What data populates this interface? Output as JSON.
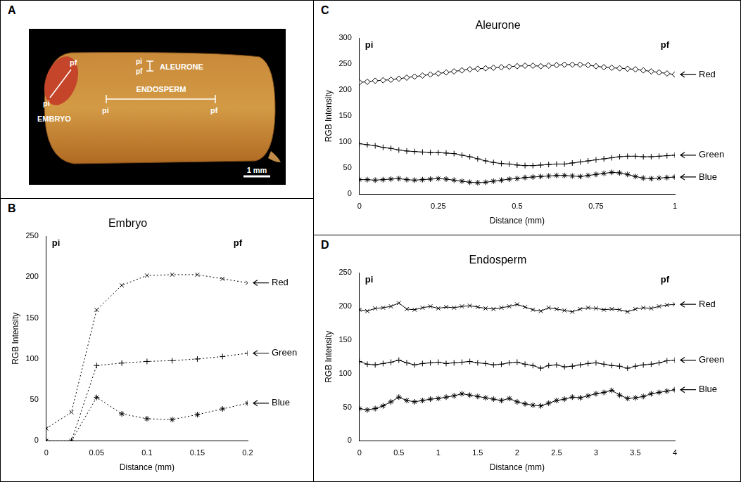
{
  "panel_a": {
    "letter": "A",
    "labels": {
      "embryo": "EMBRYO",
      "endosperm": "ENDOSPERM",
      "aleurone": "ALEURONE",
      "start": "pi",
      "end": "pf",
      "scale": "1 mm"
    }
  },
  "chart_data": [
    {
      "panel": "B",
      "type": "line",
      "title": "Embryo",
      "x_label": "Distance (mm)",
      "y_label": "RGB Intensity",
      "x": [
        0,
        0.025,
        0.05,
        0.075,
        0.1,
        0.125,
        0.15,
        0.175,
        0.2
      ],
      "series": [
        {
          "name": "Red",
          "color": "#000000",
          "marker": "x",
          "line_style": "dotted",
          "values": [
            15,
            35,
            160,
            190,
            202,
            203,
            203,
            198,
            193
          ]
        },
        {
          "name": "Green",
          "color": "#000000",
          "marker": "+",
          "line_style": "dotted",
          "values": [
            0,
            0,
            92,
            95,
            97,
            98,
            100,
            103,
            107
          ]
        },
        {
          "name": "Blue",
          "color": "#000000",
          "marker": "*",
          "line_style": "dotted",
          "values": [
            0,
            0,
            53,
            33,
            27,
            26,
            32,
            39,
            46
          ]
        }
      ],
      "annotations": [
        {
          "text": "pi",
          "x": 0
        },
        {
          "text": "pf",
          "x": 0.2
        }
      ],
      "xlim": [
        0,
        0.2
      ],
      "xticks": [
        0,
        0.05,
        0.1,
        0.15,
        0.2
      ],
      "ylim": [
        0,
        250
      ],
      "yticks": [
        0,
        50,
        100,
        150,
        200,
        250
      ],
      "grid": false
    },
    {
      "panel": "C",
      "type": "line",
      "title": "Aleurone",
      "x_label": "Distance (mm)",
      "y_label": "RGB Intensity",
      "x": [
        0,
        0.025,
        0.05,
        0.075,
        0.1,
        0.125,
        0.15,
        0.175,
        0.2,
        0.225,
        0.25,
        0.275,
        0.3,
        0.325,
        0.35,
        0.375,
        0.4,
        0.425,
        0.45,
        0.475,
        0.5,
        0.525,
        0.55,
        0.575,
        0.6,
        0.625,
        0.65,
        0.675,
        0.7,
        0.725,
        0.75,
        0.775,
        0.8,
        0.825,
        0.85,
        0.875,
        0.9,
        0.925,
        0.95,
        0.975,
        1
      ],
      "series": [
        {
          "name": "Red",
          "color": "#000000",
          "marker": "diamond",
          "line_style": "solid",
          "values": [
            215,
            216,
            218,
            219,
            220,
            222,
            224,
            226,
            228,
            230,
            232,
            234,
            236,
            238,
            240,
            241,
            242,
            243,
            244,
            245,
            246,
            247,
            247,
            246,
            247,
            248,
            249,
            249,
            249,
            248,
            246,
            244,
            243,
            242,
            241,
            240,
            238,
            236,
            234,
            232,
            230
          ]
        },
        {
          "name": "Green",
          "color": "#000000",
          "marker": "+",
          "line_style": "solid",
          "values": [
            97,
            95,
            93,
            90,
            88,
            85,
            83,
            82,
            81,
            80,
            80,
            79,
            78,
            75,
            72,
            68,
            64,
            61,
            59,
            58,
            56,
            55,
            55,
            56,
            57,
            58,
            58,
            60,
            62,
            64,
            66,
            68,
            70,
            72,
            73,
            73,
            72,
            72,
            73,
            74,
            75
          ]
        },
        {
          "name": "Blue",
          "color": "#000000",
          "marker": "*",
          "line_style": "solid",
          "values": [
            28,
            28,
            27,
            28,
            29,
            30,
            28,
            27,
            28,
            29,
            30,
            29,
            27,
            25,
            23,
            22,
            23,
            25,
            27,
            29,
            30,
            32,
            33,
            34,
            35,
            36,
            36,
            35,
            34,
            36,
            38,
            40,
            42,
            41,
            38,
            34,
            31,
            30,
            31,
            32,
            33
          ]
        }
      ],
      "annotations": [
        {
          "text": "pi",
          "x": 0
        },
        {
          "text": "pf",
          "x": 1
        }
      ],
      "xlim": [
        0,
        1
      ],
      "xticks": [
        0,
        0.25,
        0.5,
        0.75,
        1
      ],
      "ylim": [
        0,
        300
      ],
      "yticks": [
        0,
        50,
        100,
        150,
        200,
        250,
        300
      ],
      "grid": false
    },
    {
      "panel": "D",
      "type": "line",
      "title": "Endosperm",
      "x_label": "Distance (mm)",
      "y_label": "RGB Intensity",
      "x": [
        0,
        0.1,
        0.2,
        0.3,
        0.4,
        0.5,
        0.6,
        0.7,
        0.8,
        0.9,
        1,
        1.1,
        1.2,
        1.3,
        1.4,
        1.5,
        1.6,
        1.7,
        1.8,
        1.9,
        2,
        2.1,
        2.2,
        2.3,
        2.4,
        2.5,
        2.6,
        2.7,
        2.8,
        2.9,
        3,
        3.1,
        3.2,
        3.3,
        3.4,
        3.5,
        3.6,
        3.7,
        3.8,
        3.9,
        4
      ],
      "series": [
        {
          "name": "Red",
          "color": "#000000",
          "marker": "x",
          "line_style": "solid",
          "values": [
            195,
            193,
            197,
            198,
            200,
            205,
            196,
            195,
            198,
            200,
            197,
            199,
            198,
            200,
            201,
            199,
            197,
            196,
            198,
            200,
            203,
            199,
            195,
            193,
            198,
            196,
            194,
            192,
            196,
            198,
            197,
            195,
            196,
            195,
            192,
            196,
            198,
            197,
            200,
            202,
            203
          ]
        },
        {
          "name": "Green",
          "color": "#000000",
          "marker": "+",
          "line_style": "solid",
          "values": [
            118,
            114,
            113,
            115,
            117,
            120,
            116,
            113,
            115,
            116,
            117,
            115,
            116,
            117,
            118,
            116,
            115,
            113,
            114,
            116,
            117,
            114,
            112,
            108,
            112,
            113,
            110,
            111,
            113,
            115,
            116,
            114,
            112,
            111,
            108,
            111,
            113,
            114,
            116,
            119,
            120
          ]
        },
        {
          "name": "Blue",
          "color": "#000000",
          "marker": "*",
          "line_style": "solid",
          "values": [
            48,
            46,
            48,
            52,
            58,
            65,
            60,
            58,
            60,
            62,
            63,
            65,
            67,
            70,
            68,
            66,
            64,
            62,
            60,
            63,
            58,
            55,
            53,
            52,
            56,
            60,
            62,
            65,
            64,
            67,
            70,
            72,
            75,
            68,
            63,
            64,
            66,
            70,
            72,
            74,
            76
          ]
        }
      ],
      "annotations": [
        {
          "text": "pi",
          "x": 0
        },
        {
          "text": "pf",
          "x": 4
        }
      ],
      "xlim": [
        0,
        4
      ],
      "xticks": [
        0,
        0.5,
        1,
        1.5,
        2,
        2.5,
        3,
        3.5,
        4
      ],
      "ylim": [
        0,
        250
      ],
      "yticks": [
        0,
        50,
        100,
        150,
        200,
        250
      ],
      "grid": false
    }
  ]
}
